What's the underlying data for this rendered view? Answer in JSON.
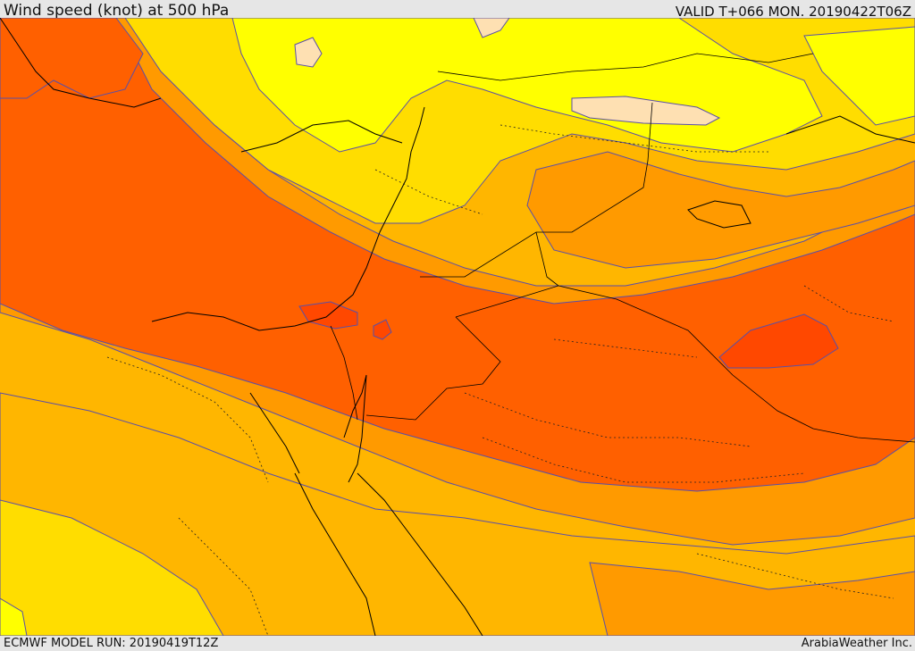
{
  "header": {
    "title": "Wind speed (knot) at 500 hPa",
    "valid": "VALID T+066 MON. 20190422T06Z"
  },
  "footer": {
    "model_run": "ECMWF MODEL RUN: 20190419T12Z",
    "credit": "ArabiaWeather Inc."
  },
  "map": {
    "fill_colors": [
      "#fee0b2",
      "#ffff00",
      "#ffdd00",
      "#ffb600",
      "#ff9a00",
      "#ff6000",
      "#ff4800"
    ],
    "contour_color": "#5a4fa8",
    "border_color": "#000000"
  }
}
